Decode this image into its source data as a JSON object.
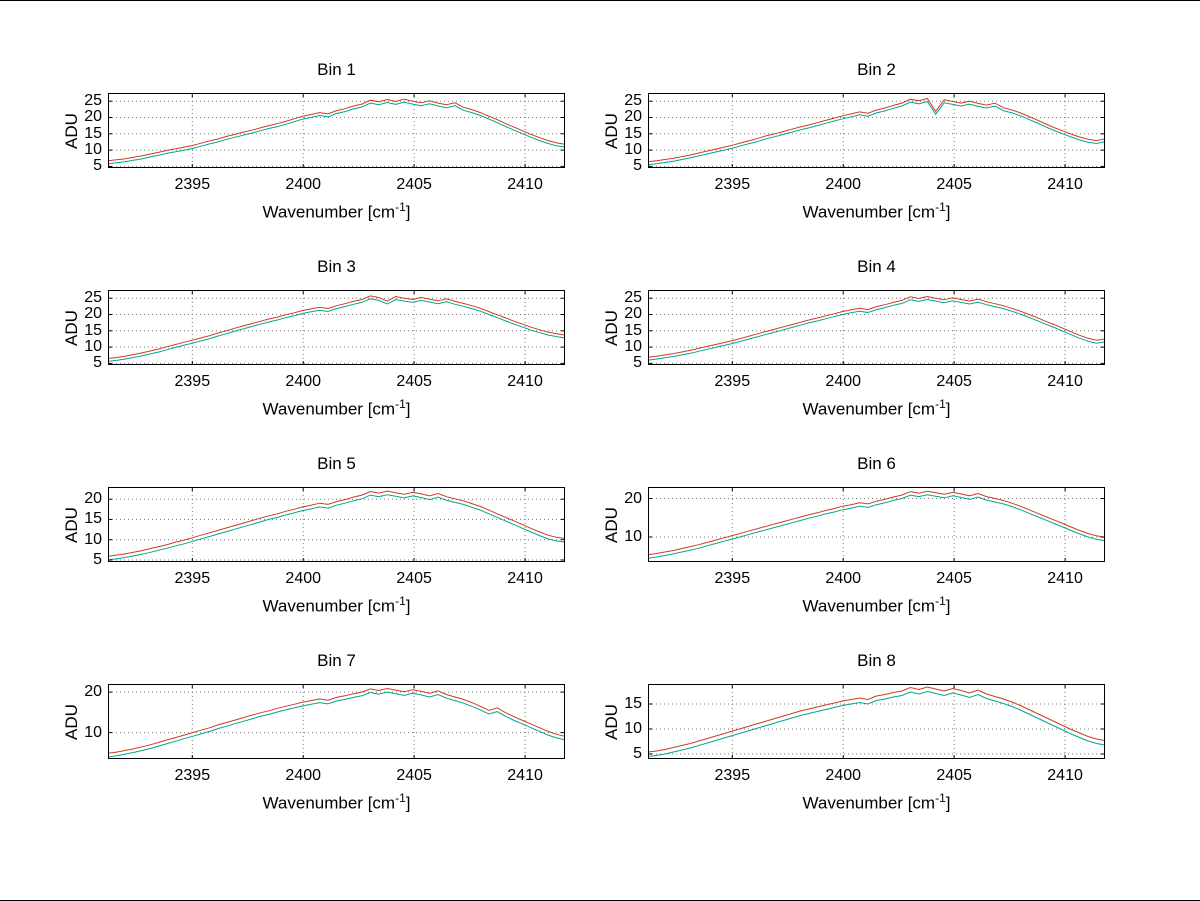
{
  "figure": {
    "background": "#ffffff",
    "border_color": "#000000",
    "grid_color": "#777777",
    "axes_color": "#000000",
    "xlabel_parts": {
      "base": "Wavenumber [cm",
      "sup": "-1",
      "close": "]"
    }
  },
  "chart_data": [
    {
      "type": "line",
      "title": "Bin 1",
      "xlabel": "Wavenumber [cm^-1]",
      "ylabel": "ADU",
      "grid": true,
      "legend": "none",
      "xlim": [
        2391.2,
        2411.8
      ],
      "ylim": [
        4.5,
        27.5
      ],
      "xticks": [
        2395,
        2400,
        2405,
        2410
      ],
      "yticks": [
        5,
        10,
        15,
        20,
        25
      ],
      "x_points": {
        "start": 2391.2,
        "end": 2411.8,
        "count": 55
      },
      "base_values": [
        5.8,
        6.1,
        6.4,
        6.9,
        7.3,
        7.9,
        8.4,
        9.0,
        9.5,
        10.0,
        10.5,
        11.2,
        11.9,
        12.5,
        13.3,
        13.9,
        14.6,
        15.2,
        15.9,
        16.6,
        17.2,
        17.9,
        18.7,
        19.5,
        20.0,
        20.6,
        20.2,
        21.2,
        21.8,
        22.6,
        23.2,
        24.4,
        23.9,
        24.6,
        24.0,
        24.7,
        24.1,
        23.6,
        24.2,
        23.5,
        23.0,
        23.6,
        22.2,
        21.5,
        20.6,
        19.5,
        18.4,
        17.2,
        16.1,
        15.0,
        13.9,
        12.9,
        12.0,
        11.3,
        10.9
      ],
      "series": [
        {
          "name": "lower-trace",
          "color": "#00a693",
          "offset": 0
        },
        {
          "name": "upper-trace",
          "color": "#cf3b22",
          "offset": 0.9
        }
      ]
    },
    {
      "type": "line",
      "title": "Bin 2",
      "xlabel": "Wavenumber [cm^-1]",
      "ylabel": "ADU",
      "grid": true,
      "legend": "none",
      "xlim": [
        2391.2,
        2411.8
      ],
      "ylim": [
        4.5,
        27.5
      ],
      "xticks": [
        2395,
        2400,
        2405,
        2410
      ],
      "yticks": [
        5,
        10,
        15,
        20,
        25
      ],
      "x_points": {
        "start": 2391.2,
        "end": 2411.8,
        "count": 55
      },
      "base_values": [
        5.5,
        5.8,
        6.2,
        6.6,
        7.1,
        7.6,
        8.2,
        8.8,
        9.4,
        10.0,
        10.6,
        11.3,
        12.0,
        12.7,
        13.5,
        14.1,
        14.8,
        15.5,
        16.2,
        16.8,
        17.5,
        18.2,
        18.9,
        19.6,
        20.2,
        20.8,
        20.4,
        21.4,
        22.0,
        22.8,
        23.5,
        24.7,
        24.2,
        24.9,
        21.0,
        24.5,
        24.0,
        23.5,
        24.1,
        23.4,
        22.9,
        23.5,
        22.1,
        21.4,
        20.5,
        19.4,
        18.3,
        17.1,
        16.0,
        15.0,
        14.0,
        13.1,
        12.4,
        12.0,
        12.6
      ],
      "series": [
        {
          "name": "lower-trace",
          "color": "#00a693",
          "offset": 0
        },
        {
          "name": "upper-trace",
          "color": "#cf3b22",
          "offset": 0.9
        }
      ]
    },
    {
      "type": "line",
      "title": "Bin 3",
      "xlabel": "Wavenumber [cm^-1]",
      "ylabel": "ADU",
      "grid": true,
      "legend": "none",
      "xlim": [
        2391.2,
        2411.8
      ],
      "ylim": [
        4.5,
        27.5
      ],
      "xticks": [
        2395,
        2400,
        2405,
        2410
      ],
      "yticks": [
        5,
        10,
        15,
        20,
        25
      ],
      "x_points": {
        "start": 2391.2,
        "end": 2411.8,
        "count": 55
      },
      "base_values": [
        5.6,
        5.9,
        6.3,
        6.8,
        7.3,
        7.9,
        8.5,
        9.2,
        9.9,
        10.6,
        11.2,
        11.9,
        12.6,
        13.4,
        14.1,
        14.9,
        15.6,
        16.3,
        17.0,
        17.7,
        18.3,
        19.0,
        19.6,
        20.3,
        20.8,
        21.3,
        20.9,
        21.8,
        22.4,
        23.1,
        23.7,
        24.8,
        24.3,
        23.2,
        24.6,
        24.1,
        23.7,
        24.3,
        23.8,
        23.3,
        23.9,
        23.1,
        22.5,
        21.8,
        21.0,
        20.0,
        19.0,
        18.0,
        17.0,
        16.1,
        15.2,
        14.4,
        13.7,
        13.2,
        12.8
      ],
      "series": [
        {
          "name": "lower-trace",
          "color": "#00a693",
          "offset": 0
        },
        {
          "name": "upper-trace",
          "color": "#cf3b22",
          "offset": 0.9
        }
      ]
    },
    {
      "type": "line",
      "title": "Bin 4",
      "xlabel": "Wavenumber [cm^-1]",
      "ylabel": "ADU",
      "grid": true,
      "legend": "none",
      "xlim": [
        2391.2,
        2411.8
      ],
      "ylim": [
        4.5,
        27.5
      ],
      "xticks": [
        2395,
        2400,
        2405,
        2410
      ],
      "yticks": [
        5,
        10,
        15,
        20,
        25
      ],
      "x_points": {
        "start": 2391.2,
        "end": 2411.8,
        "count": 55
      },
      "base_values": [
        6.0,
        6.3,
        6.7,
        7.1,
        7.6,
        8.1,
        8.7,
        9.3,
        9.9,
        10.5,
        11.1,
        11.8,
        12.5,
        13.2,
        13.9,
        14.6,
        15.3,
        16.0,
        16.7,
        17.4,
        18.0,
        18.7,
        19.3,
        20.0,
        20.5,
        21.0,
        20.6,
        21.5,
        22.1,
        22.8,
        23.4,
        24.5,
        24.0,
        24.6,
        24.1,
        23.6,
        24.2,
        23.7,
        23.2,
        23.8,
        23.0,
        22.4,
        21.8,
        21.0,
        20.1,
        19.1,
        18.1,
        17.0,
        16.0,
        14.9,
        13.8,
        12.7,
        11.8,
        11.2,
        11.6
      ],
      "series": [
        {
          "name": "lower-trace",
          "color": "#00a693",
          "offset": 0
        },
        {
          "name": "upper-trace",
          "color": "#cf3b22",
          "offset": 0.9
        }
      ]
    },
    {
      "type": "line",
      "title": "Bin 5",
      "xlabel": "Wavenumber [cm^-1]",
      "ylabel": "ADU",
      "grid": true,
      "legend": "none",
      "xlim": [
        2391.2,
        2411.8
      ],
      "ylim": [
        4.5,
        23
      ],
      "xticks": [
        2395,
        2400,
        2405,
        2410
      ],
      "yticks": [
        5,
        10,
        15,
        20
      ],
      "x_points": {
        "start": 2391.2,
        "end": 2411.8,
        "count": 55
      },
      "base_values": [
        5.0,
        5.3,
        5.6,
        6.0,
        6.4,
        6.9,
        7.4,
        7.9,
        8.5,
        9.0,
        9.6,
        10.2,
        10.8,
        11.4,
        12.0,
        12.6,
        13.2,
        13.8,
        14.4,
        15.0,
        15.5,
        16.1,
        16.6,
        17.2,
        17.6,
        18.1,
        17.8,
        18.5,
        19.0,
        19.6,
        20.1,
        21.0,
        20.6,
        21.1,
        20.7,
        20.3,
        20.8,
        20.4,
        19.9,
        20.5,
        19.7,
        19.2,
        18.7,
        18.0,
        17.3,
        16.4,
        15.5,
        14.6,
        13.7,
        12.8,
        11.9,
        11.0,
        10.2,
        9.7,
        9.4
      ],
      "series": [
        {
          "name": "lower-trace",
          "color": "#00a693",
          "offset": 0
        },
        {
          "name": "upper-trace",
          "color": "#cf3b22",
          "offset": 0.9
        }
      ]
    },
    {
      "type": "line",
      "title": "Bin 6",
      "xlabel": "Wavenumber [cm^-1]",
      "ylabel": "ADU",
      "grid": true,
      "legend": "none",
      "xlim": [
        2391.2,
        2411.8
      ],
      "ylim": [
        3.5,
        23
      ],
      "xticks": [
        2395,
        2400,
        2405,
        2410
      ],
      "yticks": [
        10,
        20
      ],
      "x_points": {
        "start": 2391.2,
        "end": 2411.8,
        "count": 55
      },
      "base_values": [
        4.5,
        4.8,
        5.2,
        5.6,
        6.1,
        6.6,
        7.1,
        7.7,
        8.3,
        8.9,
        9.5,
        10.1,
        10.7,
        11.3,
        11.9,
        12.5,
        13.1,
        13.7,
        14.3,
        14.9,
        15.4,
        16.0,
        16.5,
        17.1,
        17.5,
        18.0,
        17.7,
        18.4,
        18.9,
        19.5,
        20.0,
        20.9,
        20.5,
        21.0,
        20.6,
        20.2,
        20.7,
        20.3,
        19.8,
        20.4,
        19.6,
        19.1,
        18.6,
        17.9,
        17.1,
        16.2,
        15.3,
        14.4,
        13.5,
        12.6,
        11.7,
        10.8,
        10.0,
        9.4,
        9.0
      ],
      "series": [
        {
          "name": "lower-trace",
          "color": "#00a693",
          "offset": 0
        },
        {
          "name": "upper-trace",
          "color": "#cf3b22",
          "offset": 0.9
        }
      ]
    },
    {
      "type": "line",
      "title": "Bin 7",
      "xlabel": "Wavenumber [cm^-1]",
      "ylabel": "ADU",
      "grid": true,
      "legend": "none",
      "xlim": [
        2391.2,
        2411.8
      ],
      "ylim": [
        3.5,
        22
      ],
      "xticks": [
        2395,
        2400,
        2405,
        2410
      ],
      "yticks": [
        10,
        20
      ],
      "x_points": {
        "start": 2391.2,
        "end": 2411.8,
        "count": 55
      },
      "base_values": [
        4.0,
        4.3,
        4.7,
        5.1,
        5.6,
        6.1,
        6.7,
        7.3,
        7.9,
        8.5,
        9.1,
        9.7,
        10.3,
        11.0,
        11.6,
        12.2,
        12.8,
        13.4,
        14.0,
        14.5,
        15.1,
        15.6,
        16.1,
        16.6,
        17.0,
        17.4,
        17.1,
        17.8,
        18.2,
        18.7,
        19.1,
        19.9,
        19.5,
        20.0,
        19.6,
        19.2,
        19.7,
        19.3,
        18.8,
        19.4,
        18.5,
        17.9,
        17.3,
        16.5,
        15.6,
        14.6,
        15.2,
        14.0,
        13.0,
        12.1,
        11.2,
        10.3,
        9.4,
        8.7,
        8.2
      ],
      "series": [
        {
          "name": "lower-trace",
          "color": "#00a693",
          "offset": 0
        },
        {
          "name": "upper-trace",
          "color": "#cf3b22",
          "offset": 0.9
        }
      ]
    },
    {
      "type": "line",
      "title": "Bin 8",
      "xlabel": "Wavenumber [cm^-1]",
      "ylabel": "ADU",
      "grid": true,
      "legend": "none",
      "xlim": [
        2391.2,
        2411.8
      ],
      "ylim": [
        4,
        19
      ],
      "xticks": [
        2395,
        2400,
        2405,
        2410
      ],
      "yticks": [
        5,
        10,
        15
      ],
      "x_points": {
        "start": 2391.2,
        "end": 2411.8,
        "count": 55
      },
      "base_values": [
        4.5,
        4.7,
        5.0,
        5.4,
        5.8,
        6.2,
        6.7,
        7.2,
        7.7,
        8.2,
        8.7,
        9.2,
        9.7,
        10.2,
        10.7,
        11.2,
        11.7,
        12.2,
        12.7,
        13.1,
        13.5,
        13.9,
        14.3,
        14.7,
        15.0,
        15.3,
        15.0,
        15.7,
        16.0,
        16.4,
        16.7,
        17.4,
        17.0,
        17.5,
        17.1,
        16.7,
        17.2,
        16.8,
        16.3,
        16.9,
        16.1,
        15.6,
        15.1,
        14.5,
        13.8,
        13.0,
        12.2,
        11.4,
        10.6,
        9.8,
        9.0,
        8.3,
        7.6,
        7.1,
        6.8
      ],
      "series": [
        {
          "name": "lower-trace",
          "color": "#00a693",
          "offset": 0
        },
        {
          "name": "upper-trace",
          "color": "#cf3b22",
          "offset": 0.9
        }
      ]
    }
  ]
}
